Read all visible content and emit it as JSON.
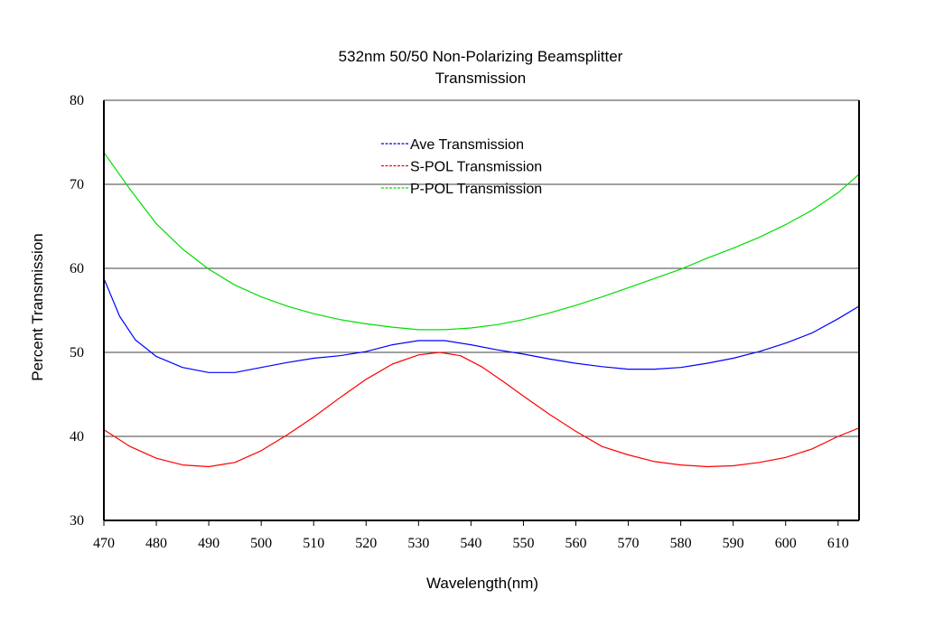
{
  "chart_data": {
    "type": "line",
    "title": "532nm 50/50 Non-Polarizing Beamsplitter",
    "subtitle": "Transmission",
    "xlabel": "Wavelength(nm)",
    "ylabel": "Percent  Transmission",
    "xlim": [
      470,
      614
    ],
    "ylim": [
      30,
      80
    ],
    "xticks": [
      470,
      480,
      490,
      500,
      510,
      520,
      530,
      540,
      550,
      560,
      570,
      580,
      590,
      600,
      610
    ],
    "yticks": [
      30,
      40,
      50,
      60,
      70,
      80
    ],
    "grid": "horizontal",
    "legend_position": "top-center",
    "series": [
      {
        "name": "Ave Transmission",
        "color": "#0000ff",
        "x": [
          470,
          473,
          476,
          480,
          485,
          490,
          495,
          500,
          505,
          510,
          515,
          520,
          525,
          530,
          535,
          540,
          545,
          550,
          555,
          560,
          565,
          570,
          575,
          580,
          585,
          590,
          595,
          600,
          605,
          610,
          614
        ],
        "y": [
          58.8,
          54.3,
          51.5,
          49.5,
          48.2,
          47.6,
          47.6,
          48.2,
          48.8,
          49.3,
          49.6,
          50.1,
          50.9,
          51.4,
          51.4,
          50.9,
          50.3,
          49.8,
          49.2,
          48.7,
          48.3,
          48.0,
          48.0,
          48.2,
          48.7,
          49.3,
          50.1,
          51.1,
          52.3,
          54.0,
          55.5
        ]
      },
      {
        "name": "S-POL Transmission",
        "color": "#ff0000",
        "x": [
          470,
          475,
          480,
          485,
          490,
          495,
          500,
          505,
          510,
          515,
          520,
          525,
          530,
          534,
          538,
          542,
          546,
          550,
          555,
          560,
          565,
          570,
          575,
          580,
          585,
          590,
          595,
          600,
          605,
          610,
          614
        ],
        "y": [
          40.8,
          38.8,
          37.4,
          36.6,
          36.4,
          36.9,
          38.3,
          40.2,
          42.3,
          44.6,
          46.8,
          48.6,
          49.7,
          50.0,
          49.6,
          48.3,
          46.6,
          44.8,
          42.6,
          40.6,
          38.8,
          37.8,
          37.0,
          36.6,
          36.4,
          36.5,
          36.9,
          37.5,
          38.5,
          40.0,
          41.0
        ]
      },
      {
        "name": "P-POL Transmission",
        "color": "#00dd00",
        "x": [
          470,
          475,
          480,
          485,
          490,
          495,
          500,
          505,
          510,
          515,
          520,
          525,
          530,
          535,
          540,
          545,
          550,
          555,
          560,
          565,
          570,
          575,
          580,
          585,
          590,
          595,
          600,
          605,
          610,
          614
        ],
        "y": [
          73.8,
          69.4,
          65.3,
          62.3,
          59.9,
          58.0,
          56.6,
          55.5,
          54.6,
          53.9,
          53.4,
          53.0,
          52.7,
          52.7,
          52.9,
          53.3,
          53.9,
          54.7,
          55.6,
          56.6,
          57.7,
          58.8,
          59.9,
          61.2,
          62.4,
          63.7,
          65.2,
          66.9,
          69.0,
          71.2
        ]
      }
    ]
  }
}
